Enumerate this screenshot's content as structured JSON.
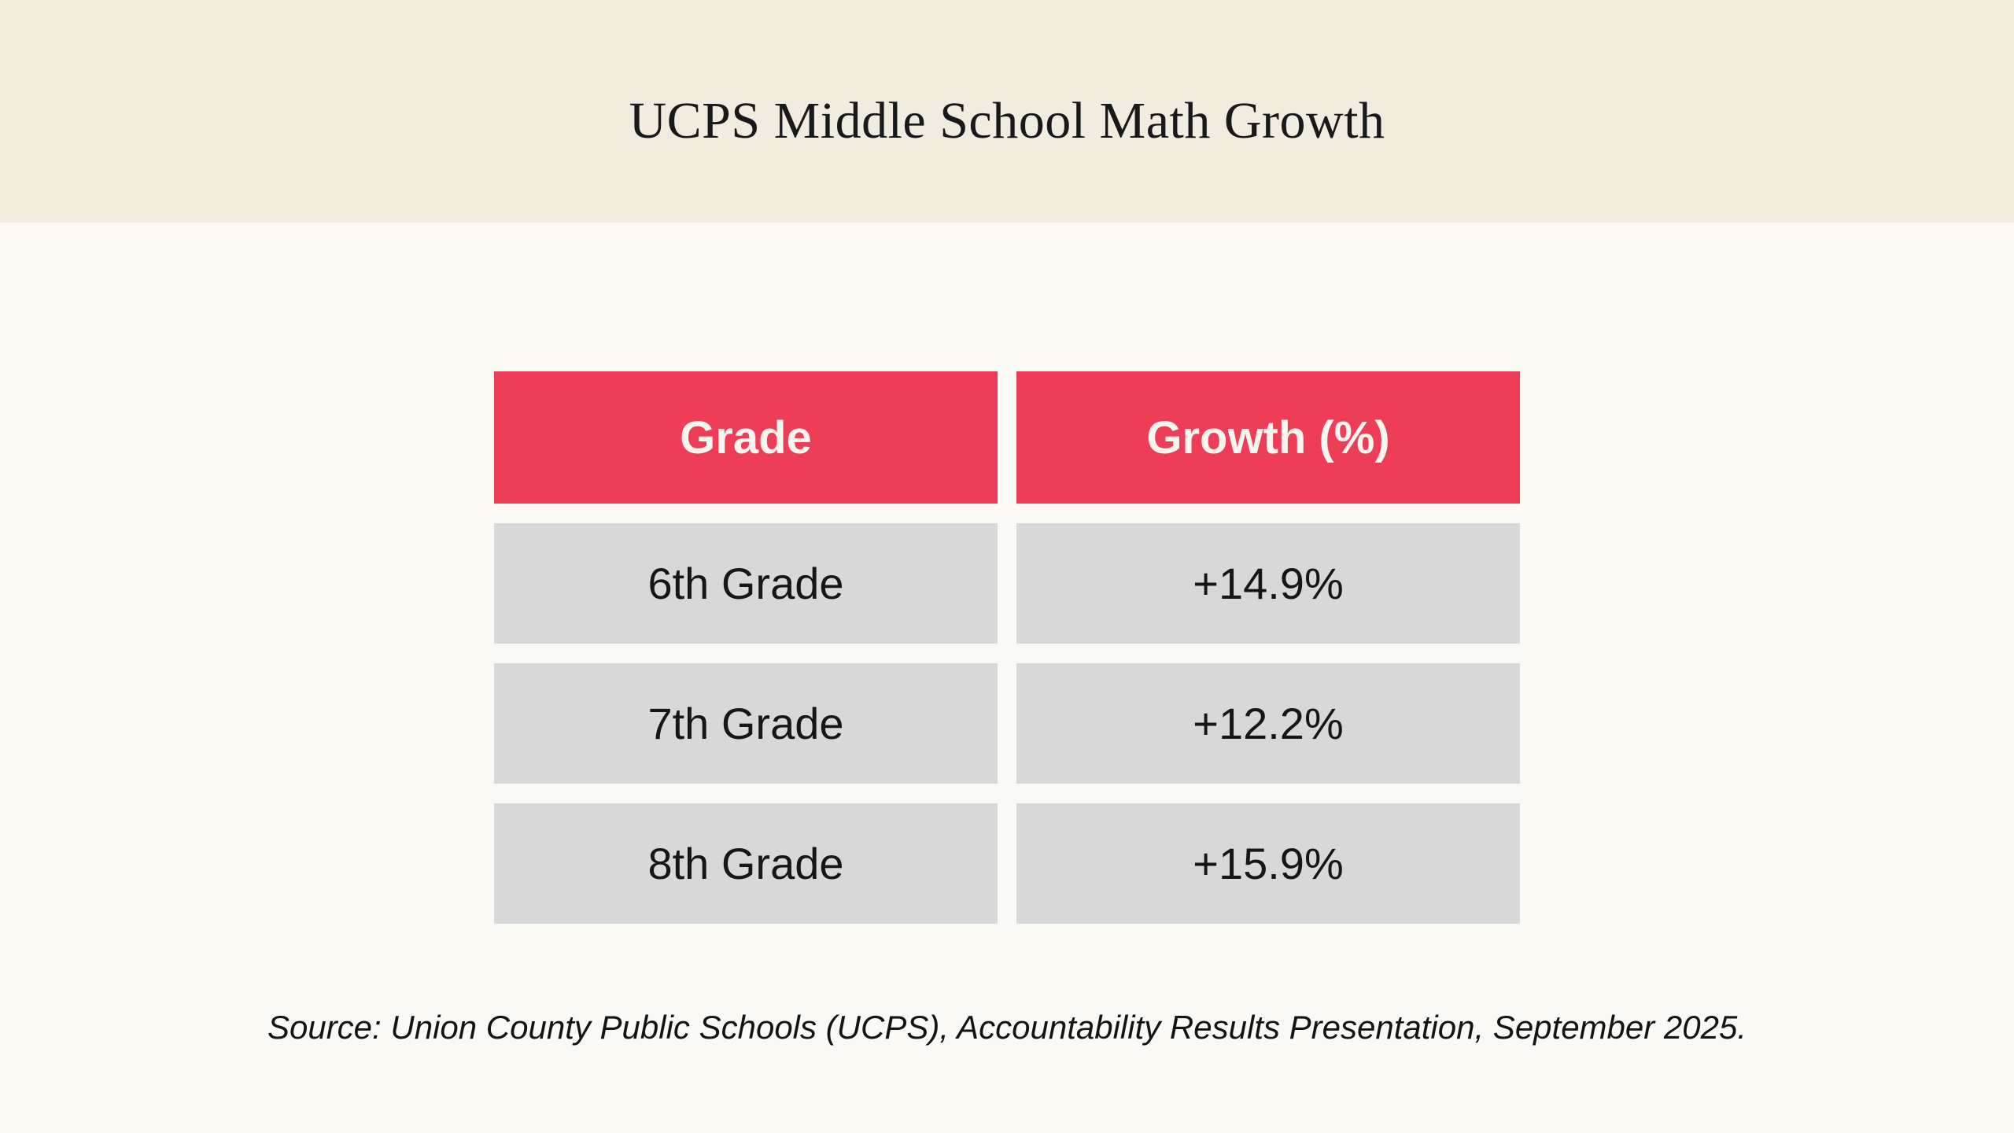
{
  "header": {
    "title": "UCPS Middle School Math Growth"
  },
  "table": {
    "columns": [
      "Grade",
      "Growth (%)"
    ],
    "rows": [
      {
        "grade": "6th Grade",
        "growth": "+14.9%"
      },
      {
        "grade": "7th Grade",
        "growth": "+12.2%"
      },
      {
        "grade": "8th Grade",
        "growth": "+15.9%"
      }
    ]
  },
  "footer": {
    "source": "Source: Union County Public Schools (UCPS), Accountability Results Presentation, September 2025."
  },
  "chart_data": {
    "type": "table",
    "title": "UCPS Middle School Math Growth",
    "columns": [
      "Grade",
      "Growth (%)"
    ],
    "categories": [
      "6th Grade",
      "7th Grade",
      "8th Grade"
    ],
    "values": [
      14.9,
      12.2,
      15.9
    ],
    "value_labels": [
      "+14.9%",
      "+12.2%",
      "+15.9%"
    ],
    "source": "Source: Union County Public Schools (UCPS), Accountability Results Presentation, September 2025."
  },
  "colors": {
    "banner_bg": "#f2ebe0",
    "page_bg": "#fbf9f3",
    "header_cell_bg": "#ee3e57",
    "header_cell_text": "#f9f5ef",
    "data_cell_bg": "#d8d8d8",
    "cell_text": "#161616",
    "title_text": "#191919",
    "source_text": "#141414"
  }
}
